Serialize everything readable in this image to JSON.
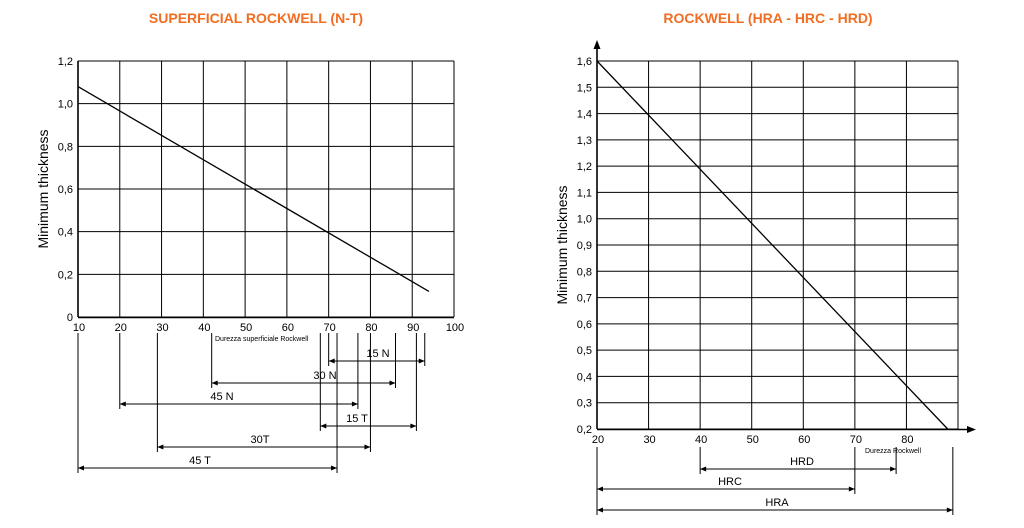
{
  "chart_data": [
    {
      "type": "line",
      "title": "SUPERFICIAL ROCKWELL (N-T)",
      "ylabel": "Minimum thickness",
      "xlabel": "Durezza superficiale Rockwell",
      "xlim": [
        10,
        100
      ],
      "ylim": [
        0,
        1.2
      ],
      "x_ticks": [
        "10",
        "20",
        "30",
        "40",
        "50",
        "60",
        "70",
        "80",
        "90",
        "100"
      ],
      "y_ticks": [
        "0",
        "0,2",
        "0,4",
        "0,6",
        "0,8",
        "1,0",
        "1,2"
      ],
      "series": [
        {
          "x": [
            10,
            94
          ],
          "y": [
            1.08,
            0.12
          ]
        }
      ],
      "ranges": [
        {
          "label": "15 N",
          "from": 70,
          "to": 93
        },
        {
          "label": "30 N",
          "from": 42,
          "to": 86
        },
        {
          "label": "45 N",
          "from": 20,
          "to": 77
        },
        {
          "label": "15 T",
          "from": 68,
          "to": 91
        },
        {
          "label": "30T",
          "from": 29,
          "to": 80
        },
        {
          "label": "45 T",
          "from": 10,
          "to": 72
        }
      ]
    },
    {
      "type": "line",
      "title": "ROCKWELL (HRA - HRC - HRD)",
      "ylabel": "Minimum thickness",
      "xlabel": "Durezza Rockwell",
      "xlim": [
        20,
        90
      ],
      "ylim": [
        0.2,
        1.6
      ],
      "x_ticks": [
        "20",
        "30",
        "40",
        "50",
        "60",
        "70",
        "80"
      ],
      "y_ticks": [
        "0,2",
        "0,3",
        "0,4",
        "0,5",
        "0,6",
        "0,7",
        "0,8",
        "0,9",
        "1,0",
        "1,1",
        "1,2",
        "1,3",
        "1,4",
        "1,5",
        "1,6"
      ],
      "series": [
        {
          "x": [
            20,
            88
          ],
          "y": [
            1.6,
            0.2
          ]
        }
      ],
      "ranges": [
        {
          "label": "HRD",
          "from": 40,
          "to": 78
        },
        {
          "label": "HRC",
          "from": 20,
          "to": 70
        },
        {
          "label": "HRA",
          "from": 20,
          "to": 89
        }
      ]
    }
  ]
}
